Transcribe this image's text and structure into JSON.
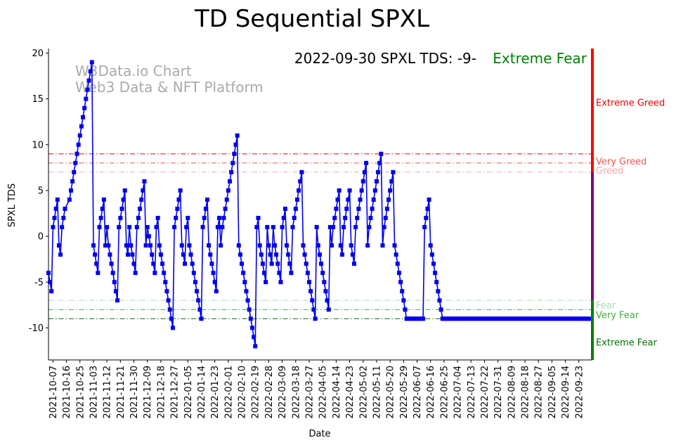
{
  "chart_data": {
    "type": "line",
    "title": "TD Sequential SPXL",
    "xlabel": "Date",
    "ylabel": "SPXL TDS",
    "ylim": [
      -13.5,
      20.5
    ],
    "yticks": [
      -10,
      -5,
      0,
      5,
      10,
      15,
      20
    ],
    "x_ticks": [
      "2021-10-07",
      "2021-10-16",
      "2021-10-25",
      "2021-11-03",
      "2021-11-12",
      "2021-11-21",
      "2021-11-30",
      "2021-12-09",
      "2021-12-18",
      "2021-12-27",
      "2022-01-05",
      "2022-01-14",
      "2022-01-23",
      "2022-02-01",
      "2022-02-10",
      "2022-02-19",
      "2022-02-28",
      "2022-03-09",
      "2022-03-18",
      "2022-03-27",
      "2022-04-05",
      "2022-04-14",
      "2022-04-23",
      "2022-05-02",
      "2022-05-11",
      "2022-05-20",
      "2022-05-29",
      "2022-06-07",
      "2022-06-16",
      "2022-06-25",
      "2022-07-04",
      "2022-07-13",
      "2022-07-22",
      "2022-07-31",
      "2022-08-09",
      "2022-08-18",
      "2022-08-27",
      "2022-09-05",
      "2022-09-14",
      "2022-09-23"
    ],
    "x_range": [
      "2021-10-04",
      "2022-10-02"
    ],
    "series": [
      {
        "name": "SPXL TDS",
        "color": "#0000ee",
        "start_date": "2021-10-04",
        "day_offsets": [
          0,
          1,
          2,
          3,
          4,
          5,
          6,
          7,
          8,
          9,
          10,
          11,
          14,
          15,
          16,
          17,
          18,
          19,
          20,
          21,
          22,
          23,
          24,
          25,
          26,
          27,
          28,
          29,
          30,
          31,
          32,
          33,
          34,
          35,
          36,
          37,
          38,
          39,
          40,
          41,
          42,
          43,
          44,
          45,
          46,
          47,
          48,
          49,
          50,
          51,
          52,
          53,
          54,
          55,
          56,
          57,
          58,
          59,
          60,
          61,
          62,
          63,
          64,
          65,
          66,
          67,
          68,
          69,
          70,
          71,
          72,
          73,
          74,
          75,
          76,
          77,
          78,
          79,
          80,
          81,
          82,
          83,
          84,
          85,
          86,
          87,
          88,
          89,
          90,
          91,
          92,
          93,
          94,
          95,
          96,
          97,
          98,
          99,
          100,
          101,
          102,
          103,
          104,
          105,
          106,
          107,
          108,
          109,
          110,
          111,
          112,
          113,
          114,
          115,
          116,
          117,
          118,
          119,
          120,
          121,
          122,
          123,
          124,
          125,
          126,
          127,
          128,
          129,
          130,
          131,
          132,
          133,
          134,
          135,
          136,
          137,
          138,
          139,
          140,
          141,
          142,
          143,
          144,
          145,
          146,
          147,
          148,
          149,
          150,
          151,
          152,
          153,
          154,
          155,
          156,
          157,
          158,
          159,
          160,
          161,
          162,
          163,
          164,
          165,
          166,
          167,
          168,
          169,
          170,
          171,
          172,
          173,
          174,
          175,
          176,
          177,
          178,
          179,
          180,
          181,
          182,
          183,
          184,
          185,
          186,
          187,
          188,
          189,
          190,
          191,
          192,
          193,
          194,
          195,
          196,
          197,
          198,
          199,
          200,
          201,
          202,
          203,
          204,
          205,
          206,
          207,
          208,
          209,
          210,
          211,
          212,
          213,
          214,
          215,
          216,
          217,
          218,
          219,
          220,
          221,
          222,
          223,
          224,
          225,
          226,
          227,
          228,
          229,
          230,
          231,
          232,
          233,
          234,
          235,
          236,
          237,
          238,
          239,
          240,
          241,
          242,
          243,
          244,
          245,
          246,
          247,
          248,
          249,
          250,
          251,
          252,
          253,
          254,
          255,
          256,
          257,
          258,
          259,
          260,
          261,
          262,
          263,
          264,
          265,
          266,
          267,
          268,
          269,
          270,
          271,
          272,
          273,
          274,
          275,
          276,
          277,
          278,
          279,
          280,
          281,
          282,
          283,
          284,
          285,
          286,
          287,
          288,
          289,
          290,
          291,
          292,
          293,
          294,
          295,
          296,
          297,
          298,
          299,
          300,
          301,
          302,
          303,
          304,
          305,
          306,
          307,
          308,
          309,
          310,
          311,
          312,
          313,
          314,
          315,
          316,
          317,
          318,
          319,
          320,
          321,
          322,
          323,
          324,
          325,
          326,
          327,
          328,
          329,
          330,
          331,
          332,
          333,
          334,
          335,
          336,
          337,
          338,
          339,
          340,
          341,
          342,
          343,
          344,
          345,
          346,
          347,
          348,
          349,
          350,
          351,
          352,
          353,
          354,
          355,
          356,
          357,
          358,
          359,
          360,
          361
        ],
        "values": [
          -4,
          -5,
          -6,
          1,
          2,
          3,
          4,
          -1,
          -2,
          1,
          2,
          3,
          4,
          5,
          6,
          7,
          8,
          9,
          10,
          11,
          12,
          13,
          14,
          15,
          16,
          17,
          18,
          19,
          -1,
          -2,
          -3,
          -4,
          1,
          2,
          3,
          4,
          -1,
          1,
          -1,
          -2,
          -3,
          -4,
          -5,
          -6,
          -7,
          1,
          2,
          3,
          4,
          5,
          -1,
          -2,
          1,
          -1,
          -2,
          -3,
          -4,
          1,
          2,
          3,
          4,
          5,
          6,
          -1,
          1,
          0,
          -1,
          -2,
          -3,
          -4,
          1,
          2,
          -1,
          -2,
          -3,
          -4,
          -5,
          -6,
          -7,
          -8,
          -9,
          -10,
          1,
          2,
          3,
          4,
          5,
          -1,
          -2,
          -3,
          1,
          2,
          -1,
          -2,
          -3,
          -4,
          -5,
          -6,
          -7,
          -8,
          -9,
          1,
          2,
          3,
          4,
          -1,
          -2,
          -3,
          -4,
          -5,
          -6,
          1,
          2,
          -1,
          1,
          2,
          3,
          4,
          5,
          6,
          7,
          8,
          9,
          10,
          11,
          -1,
          -2,
          -3,
          -4,
          -5,
          -6,
          -7,
          -8,
          -9,
          -10,
          -11,
          -12,
          1,
          2,
          -1,
          -2,
          -3,
          -4,
          -5,
          1,
          -1,
          -2,
          -3,
          1,
          -1,
          -2,
          -3,
          -4,
          -5,
          1,
          2,
          3,
          -1,
          -2,
          -3,
          -4,
          1,
          2,
          3,
          4,
          5,
          6,
          7,
          -1,
          -2,
          -3,
          -4,
          -5,
          -6,
          -7,
          -8,
          -9,
          1,
          -1,
          -2,
          -3,
          -4,
          -5,
          -6,
          -7,
          -8,
          1,
          -1,
          1,
          2,
          3,
          4,
          5,
          -1,
          -2,
          1,
          2,
          3,
          4,
          5,
          -1,
          -2,
          -3,
          1,
          2,
          3,
          4,
          5,
          6,
          7,
          8,
          -1,
          1,
          2,
          3,
          4,
          5,
          6,
          7,
          8,
          9,
          -1,
          1,
          2,
          3,
          4,
          5,
          6,
          7,
          -1,
          -2,
          -3,
          -4,
          -5,
          -6,
          -7,
          -8,
          -9,
          -9,
          -9,
          -9,
          -9,
          -9,
          -9,
          -9,
          -9,
          -9,
          -9,
          -9,
          1,
          2,
          3,
          4,
          -1,
          -2,
          -3,
          -4,
          -5,
          -6,
          -7,
          -8,
          -9,
          -9,
          -9,
          -9,
          -9,
          -9,
          -9,
          -9,
          -9,
          -9,
          -9,
          -9,
          -9,
          -9,
          -9,
          -9,
          -9,
          -9,
          -9,
          -9,
          -9,
          -9,
          -9,
          -9,
          -9,
          -9,
          -9,
          -9,
          -9,
          -9,
          -9,
          -9,
          -9,
          -9,
          -9,
          -9,
          -9,
          -9,
          -9,
          -9,
          -9,
          -9,
          -9,
          -9,
          -9,
          -9,
          -9,
          -9,
          -9,
          -9,
          -9,
          -9,
          -9,
          -9,
          -9,
          -9,
          -9,
          -9,
          -9,
          -9,
          -9,
          -9,
          -9,
          -9,
          -9,
          -9,
          -9,
          -9,
          -9,
          -9,
          -9,
          -9,
          -9,
          -9,
          -9,
          -9,
          -9,
          -9,
          -9,
          -9,
          -9,
          -9,
          -9,
          -9,
          -9,
          -9,
          -9,
          -9,
          -9,
          -9,
          -9,
          -9,
          -9,
          -9,
          -9,
          -9,
          -9,
          -9,
          -9,
          -9,
          -9,
          -9,
          -9,
          -9,
          -9,
          -9,
          -9,
          -9,
          -9,
          -9,
          -9,
          -9,
          -9,
          -9,
          -9
        ]
      }
    ],
    "threshold_lines": [
      {
        "name": "extreme-greed-line",
        "value": 9,
        "color": "#dd0000"
      },
      {
        "name": "very-greed-line",
        "value": 8,
        "color": "#ee5555"
      },
      {
        "name": "greed-line",
        "value": 7,
        "color": "#f4a6a6"
      },
      {
        "name": "fear-line",
        "value": -7,
        "color": "#a8d8a8"
      },
      {
        "name": "very-fear-line",
        "value": -8,
        "color": "#44aa44"
      },
      {
        "name": "extreme-fear-line",
        "value": -9,
        "color": "#007700"
      }
    ],
    "zone_labels": [
      {
        "name": "extreme-greed",
        "text": "Extreme Greed",
        "value": 14.6,
        "color": "#ee0000"
      },
      {
        "name": "very-greed",
        "text": "Very Greed",
        "value": 8.2,
        "color": "#ee5555"
      },
      {
        "name": "greed",
        "text": "Greed",
        "value": 7.2,
        "color": "#f4a6a6"
      },
      {
        "name": "fear",
        "text": "Fear",
        "value": -7.5,
        "color": "#a8d8a8"
      },
      {
        "name": "very-fear",
        "text": "Very Fear",
        "value": -8.6,
        "color": "#44aa44"
      },
      {
        "name": "extreme-fear",
        "text": "Extreme Fear",
        "value": -11.6,
        "color": "#007700"
      }
    ],
    "side_bar": [
      {
        "name": "greed-bar",
        "from": 7,
        "to": 20.5,
        "color": "#ff0000"
      },
      {
        "name": "neutral-bar",
        "from": -7,
        "to": 7,
        "color": "#800080"
      },
      {
        "name": "fear-bar",
        "from": -13.5,
        "to": -7,
        "color": "#008000"
      }
    ],
    "annotation": {
      "text": "2022-09-30 SPXL TDS: -9-",
      "status": "Extreme Fear",
      "status_color": "#008000"
    },
    "watermark": {
      "line1": "W3Data.io Chart",
      "line2": "Web3 Data & NFT Platform"
    }
  }
}
